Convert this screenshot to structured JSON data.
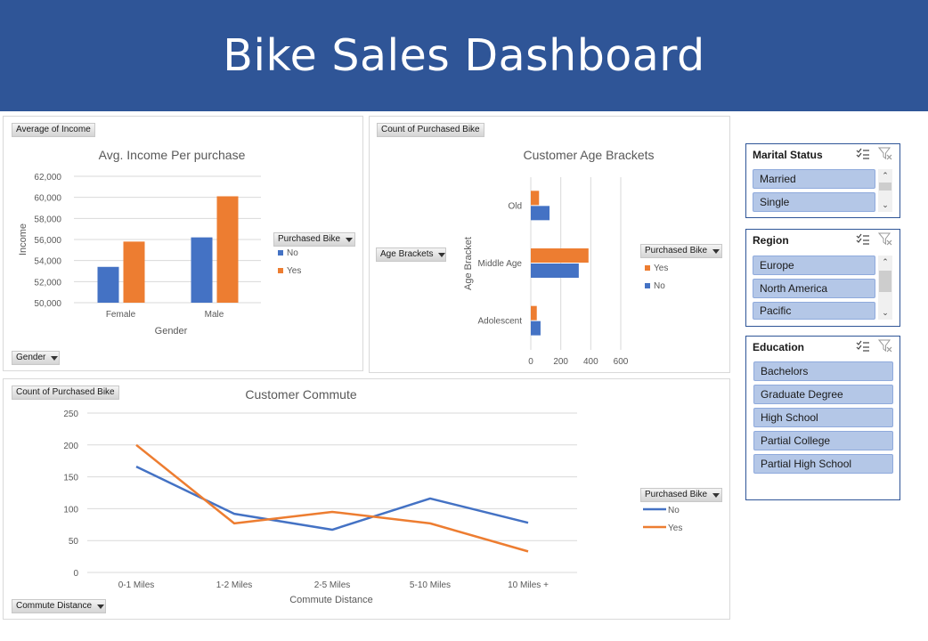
{
  "banner": {
    "title": "Bike Sales Dashboard"
  },
  "colors": {
    "banner": "#2f5597",
    "no": "#4472c4",
    "yes": "#ed7d31",
    "slicer_item": "#b4c7e7"
  },
  "income_panel": {
    "field_button": "Average of Income",
    "axis_button": "Gender",
    "legend_button": "Purchased Bike",
    "chart_data": {
      "type": "bar",
      "title": "Avg. Income Per purchase",
      "xlabel": "Gender",
      "ylabel": "Income",
      "categories": [
        "Female",
        "Male"
      ],
      "ylim": [
        50000,
        62000
      ],
      "yticks": [
        "50,000",
        "52,000",
        "54,000",
        "56,000",
        "58,000",
        "60,000",
        "62,000"
      ],
      "series": [
        {
          "name": "No",
          "values": [
            53400,
            56200
          ]
        },
        {
          "name": "Yes",
          "values": [
            55800,
            60100
          ]
        }
      ]
    }
  },
  "age_panel": {
    "field_button": "Count of Purchased Bike",
    "axis_button": "Age Brackets",
    "legend_button": "Purchased Bike",
    "chart_data": {
      "type": "bar",
      "orientation": "horizontal",
      "title": "Customer Age Brackets",
      "ylabel": "Age Bracket",
      "categories": [
        "Old",
        "Middle Age",
        "Adolescent"
      ],
      "xlim": [
        0,
        600
      ],
      "xticks": [
        "0",
        "200",
        "400",
        "600"
      ],
      "series": [
        {
          "name": "Yes",
          "values": [
            55,
            385,
            40
          ]
        },
        {
          "name": "No",
          "values": [
            125,
            320,
            65
          ]
        }
      ]
    }
  },
  "commute_panel": {
    "field_button": "Count of Purchased Bike",
    "axis_button": "Commute Distance",
    "legend_button": "Purchased Bike",
    "chart_data": {
      "type": "line",
      "title": "Customer Commute",
      "xlabel": "Commute Distance",
      "categories": [
        "0-1 Miles",
        "1-2 Miles",
        "2-5 Miles",
        "5-10 Miles",
        "10 Miles +"
      ],
      "ylim": [
        0,
        250
      ],
      "yticks": [
        "0",
        "50",
        "100",
        "150",
        "200",
        "250"
      ],
      "series": [
        {
          "name": "No",
          "values": [
            166,
            92,
            67,
            116,
            78
          ]
        },
        {
          "name": "Yes",
          "values": [
            200,
            77,
            95,
            77,
            33
          ]
        }
      ]
    }
  },
  "slicers": {
    "marital": {
      "title": "Marital Status",
      "items": [
        "Married",
        "Single"
      ]
    },
    "region": {
      "title": "Region",
      "items": [
        "Europe",
        "North America",
        "Pacific"
      ]
    },
    "education": {
      "title": "Education",
      "items": [
        "Bachelors",
        "Graduate Degree",
        "High School",
        "Partial College",
        "Partial High School"
      ]
    }
  }
}
